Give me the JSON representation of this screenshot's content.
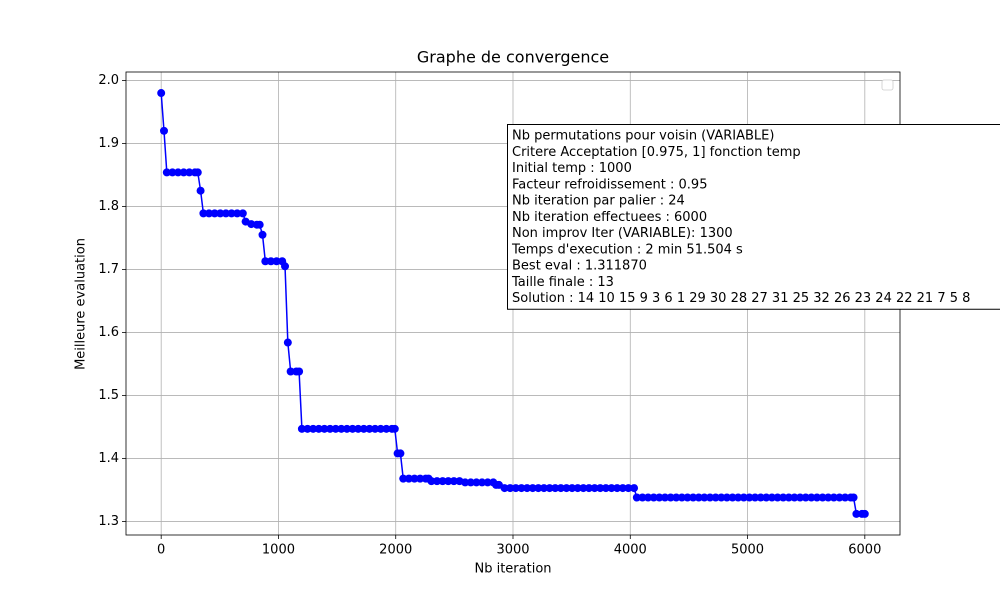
{
  "chart_data": {
    "type": "line",
    "title": "Graphe de convergence",
    "x_label": "Nb iteration",
    "y_label": "Meilleure evaluation",
    "color": "#0000ff",
    "grid": true,
    "legend": "upper right",
    "xlim": [
      -300,
      6300
    ],
    "xticks": [
      0,
      1000,
      2000,
      3000,
      4000,
      5000,
      6000
    ],
    "ylim": [
      1.2785,
      2.0134
    ],
    "yticks": [
      1.3,
      1.4,
      1.5,
      1.6,
      1.7,
      1.8,
      1.9,
      {
        "value": 2,
        "label": "2.0"
      }
    ],
    "annotation": [
      "Nb permutations pour voisin (VARIABLE)",
      "Critere Acceptation [0.975, 1] fonction temp",
      "Initial temp : 1000",
      "Facteur refroidissement : 0.95",
      "Nb iteration par palier : 24",
      "Nb iteration effectuees : 6000",
      "Non improv Iter (VARIABLE): 1300",
      "Temps d'execution : 2 min 51.504 s",
      "Best eval : 1.311870",
      "Taille finale : 13",
      "Solution : 14 10 15 9 3 6 1 29 30 28 27 31 25 32 26 23 24 22 21 7 5 8"
    ],
    "x": [
      0,
      24,
      48,
      96,
      144,
      192,
      240,
      288,
      312,
      336,
      360,
      408,
      456,
      504,
      552,
      600,
      648,
      696,
      720,
      768,
      816,
      840,
      864,
      888,
      936,
      984,
      1032,
      1056,
      1080,
      1104,
      1152,
      1176,
      1200,
      1248,
      1296,
      1344,
      1392,
      1440,
      1488,
      1536,
      1584,
      1632,
      1680,
      1728,
      1776,
      1824,
      1872,
      1920,
      1968,
      1992,
      2016,
      2040,
      2064,
      2112,
      2160,
      2208,
      2256,
      2280,
      2304,
      2352,
      2400,
      2448,
      2496,
      2544,
      2592,
      2640,
      2688,
      2736,
      2784,
      2832,
      2856,
      2880,
      2928,
      2976,
      3024,
      3072,
      3120,
      3168,
      3216,
      3264,
      3312,
      3360,
      3408,
      3456,
      3504,
      3552,
      3600,
      3648,
      3696,
      3744,
      3792,
      3840,
      3888,
      3936,
      3984,
      4032,
      4056,
      4104,
      4152,
      4200,
      4248,
      4296,
      4344,
      4392,
      4440,
      4488,
      4536,
      4584,
      4632,
      4680,
      4728,
      4776,
      4824,
      4872,
      4920,
      4968,
      5016,
      5064,
      5112,
      5160,
      5208,
      5256,
      5304,
      5352,
      5400,
      5448,
      5496,
      5544,
      5592,
      5640,
      5688,
      5736,
      5784,
      5832,
      5880,
      5904,
      5928,
      5976,
      6000
    ],
    "values": [
      1.98,
      1.92,
      1.854,
      1.854,
      1.854,
      1.854,
      1.854,
      1.854,
      1.854,
      1.825,
      1.789,
      1.789,
      1.789,
      1.789,
      1.789,
      1.789,
      1.789,
      1.789,
      1.776,
      1.772,
      1.771,
      1.771,
      1.755,
      1.713,
      1.713,
      1.713,
      1.713,
      1.705,
      1.584,
      1.538,
      1.538,
      1.538,
      1.447,
      1.447,
      1.447,
      1.447,
      1.447,
      1.447,
      1.447,
      1.447,
      1.447,
      1.447,
      1.447,
      1.447,
      1.447,
      1.447,
      1.447,
      1.447,
      1.447,
      1.447,
      1.408,
      1.408,
      1.368,
      1.368,
      1.368,
      1.368,
      1.368,
      1.368,
      1.364,
      1.364,
      1.364,
      1.364,
      1.364,
      1.364,
      1.362,
      1.362,
      1.362,
      1.362,
      1.362,
      1.362,
      1.358,
      1.358,
      1.353,
      1.353,
      1.353,
      1.353,
      1.353,
      1.353,
      1.353,
      1.353,
      1.353,
      1.353,
      1.353,
      1.353,
      1.353,
      1.353,
      1.353,
      1.353,
      1.353,
      1.353,
      1.353,
      1.353,
      1.353,
      1.353,
      1.353,
      1.353,
      1.338,
      1.338,
      1.338,
      1.338,
      1.338,
      1.338,
      1.338,
      1.338,
      1.338,
      1.338,
      1.338,
      1.338,
      1.338,
      1.338,
      1.338,
      1.338,
      1.338,
      1.338,
      1.338,
      1.338,
      1.338,
      1.338,
      1.338,
      1.338,
      1.338,
      1.338,
      1.338,
      1.338,
      1.338,
      1.338,
      1.338,
      1.338,
      1.338,
      1.338,
      1.338,
      1.338,
      1.338,
      1.338,
      1.338,
      1.338,
      1.312,
      1.312,
      1.312
    ]
  }
}
